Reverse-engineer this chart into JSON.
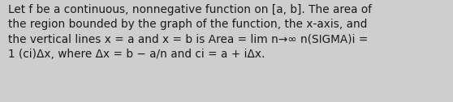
{
  "text": "Let f be a continuous, nonnegative function on [a, b]. The area of\nthe region bounded by the graph of the function, the x-axis, and\nthe vertical lines x = a and x = b is Area = lim n→∞ n(SIGMA)i =\n1 (ci)Δx, where Δx = b − a/n and ci = a + iΔx.",
  "background_color": "#cecece",
  "text_color": "#1a1a1a",
  "font_size": 9.8,
  "fig_width": 5.58,
  "fig_height": 1.26,
  "dpi": 100
}
